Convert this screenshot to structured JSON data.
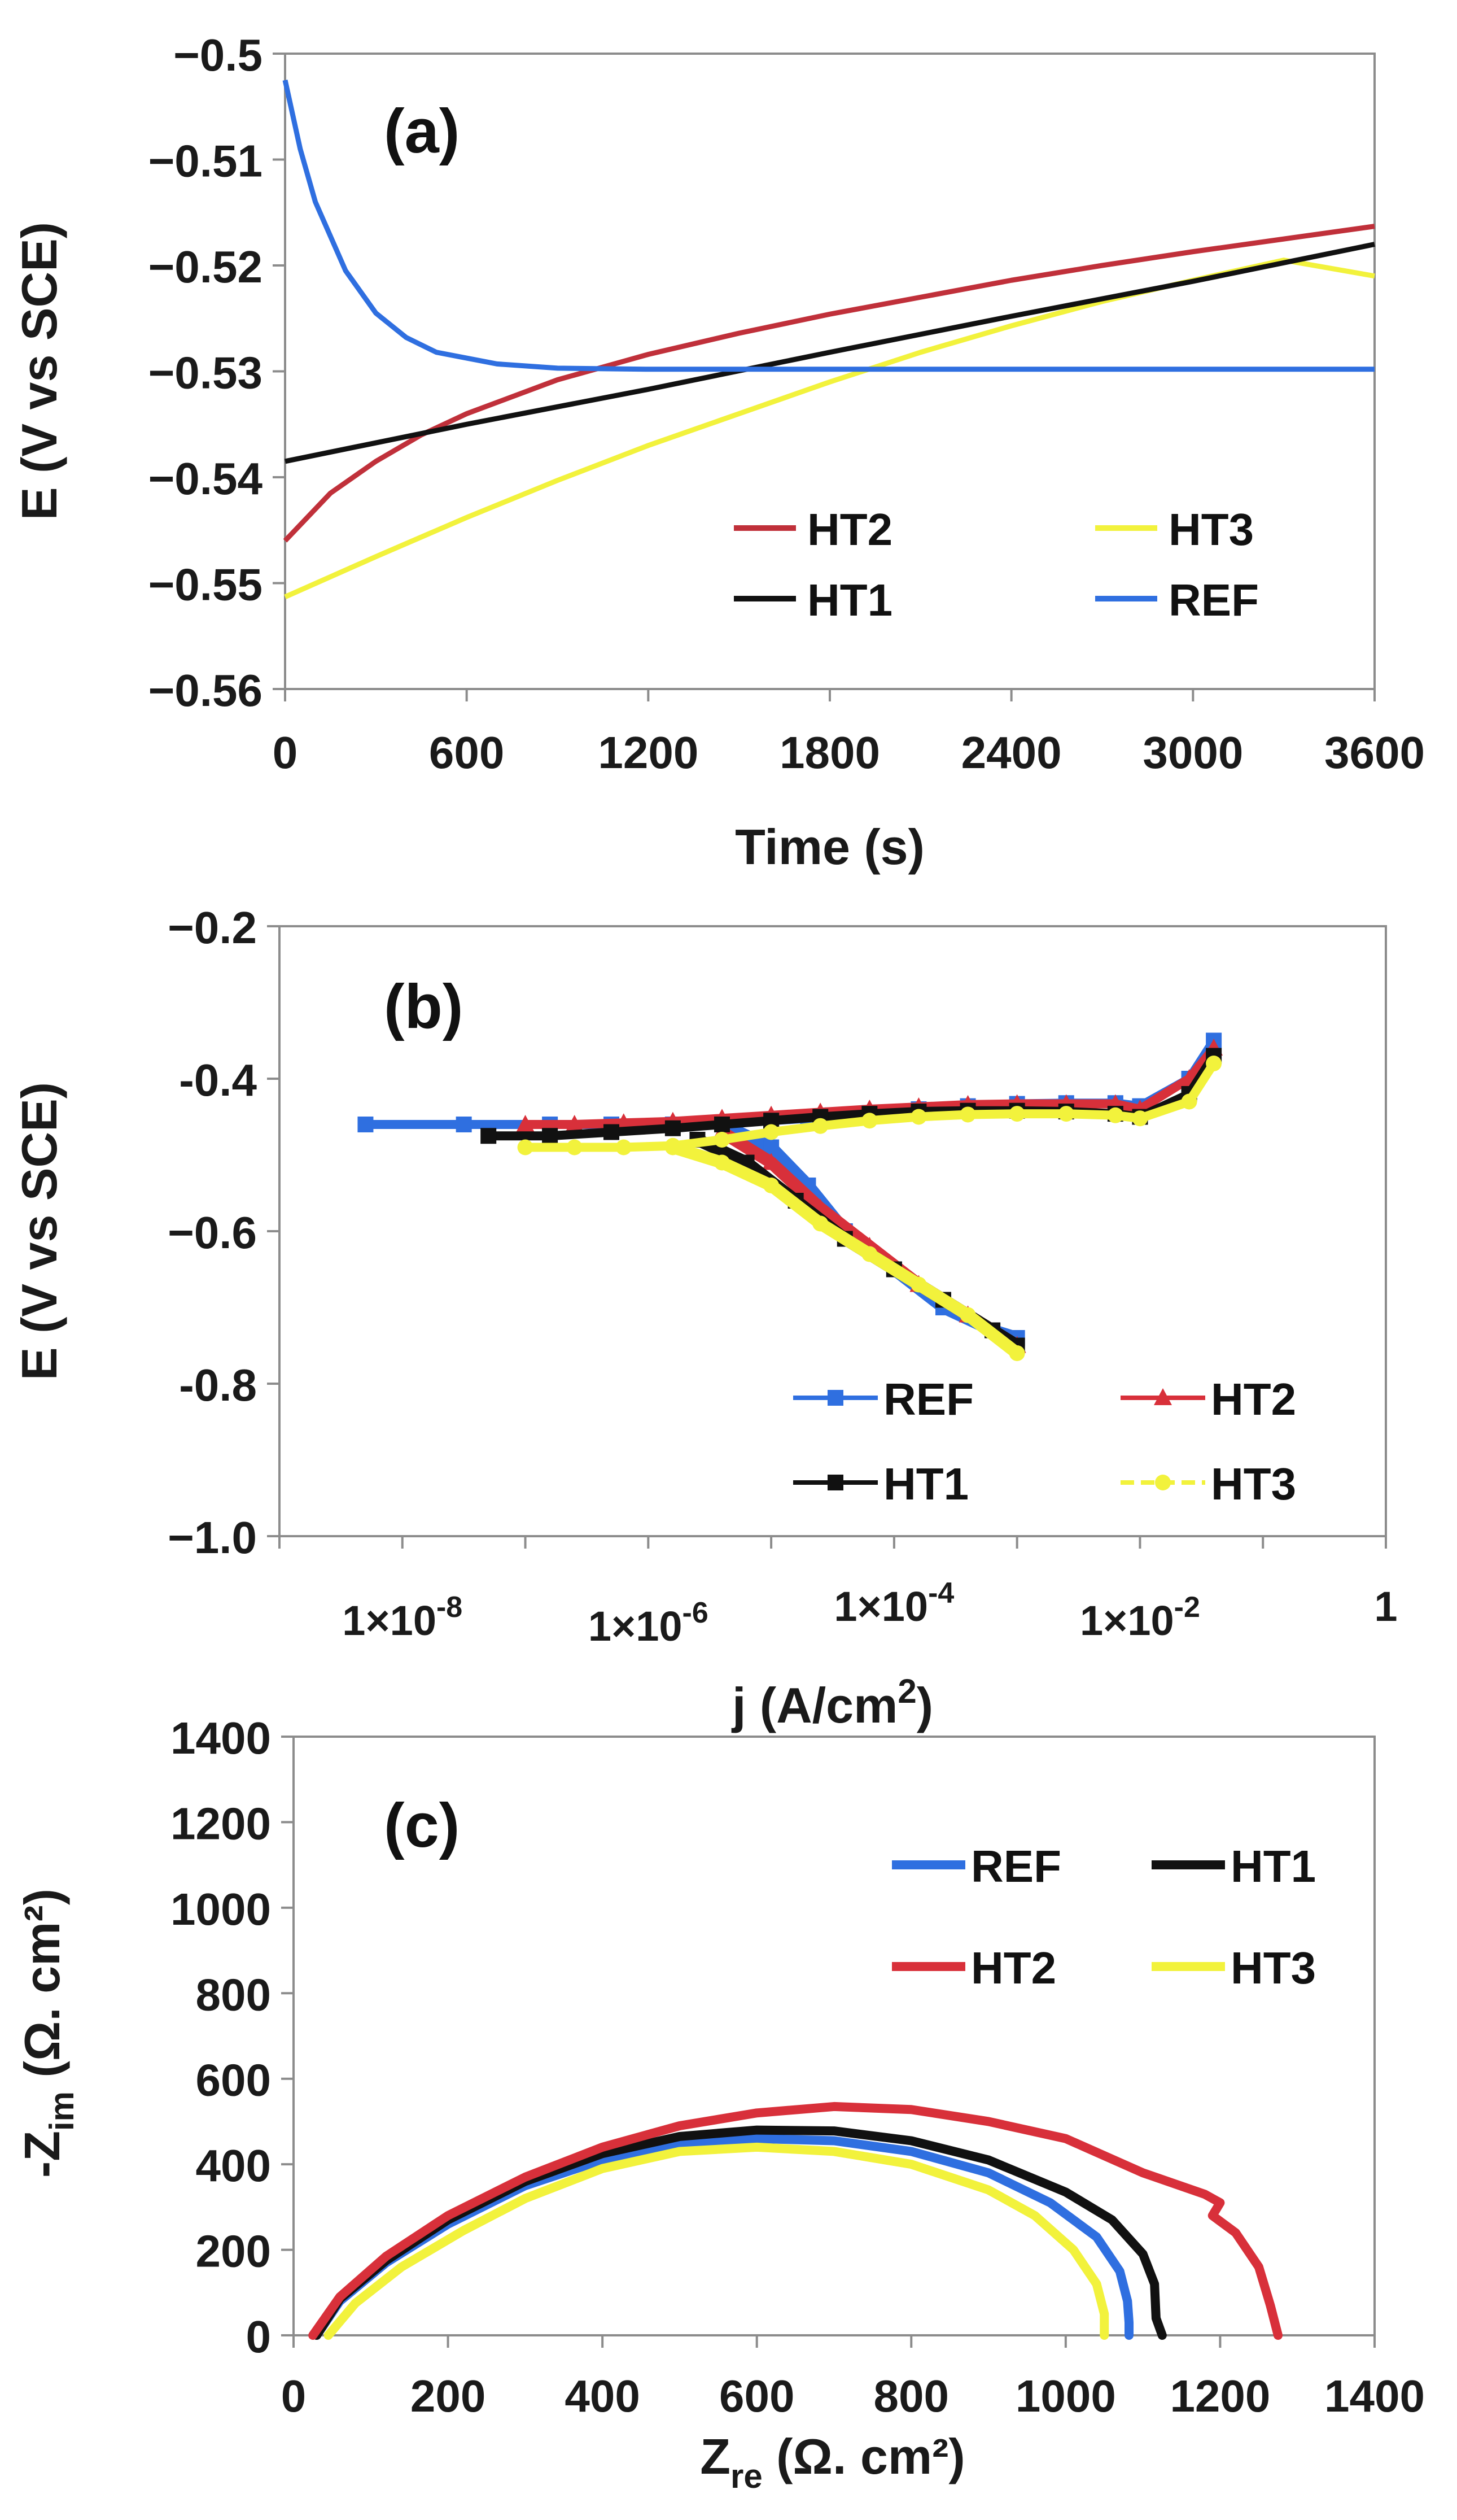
{
  "chart_data": [
    {
      "panel": "(a)",
      "type": "line",
      "title": "",
      "xlabel": "Time (s)",
      "ylabel": "E (V vs SCE)",
      "xlim": [
        0,
        3600
      ],
      "ylim": [
        -0.56,
        -0.5
      ],
      "x_tick_labels": [
        "0",
        "600",
        "1200",
        "1800",
        "2400",
        "3000",
        "3600"
      ],
      "y_tick_labels": [
        "−0.5",
        "−0.51",
        "−0.52",
        "−0.53",
        "−0.54",
        "−0.55",
        "−0.56"
      ],
      "legend_position": "bottom-right",
      "series": [
        {
          "name": "HT2",
          "color": "#c0303a",
          "x": [
            0,
            150,
            300,
            450,
            600,
            900,
            1200,
            1500,
            1800,
            2100,
            2400,
            2700,
            3000,
            3300,
            3600
          ],
          "y": [
            -0.546,
            -0.5415,
            -0.5385,
            -0.536,
            -0.534,
            -0.5308,
            -0.5284,
            -0.5264,
            -0.5246,
            -0.523,
            -0.5214,
            -0.52,
            -0.5187,
            -0.5175,
            -0.5163
          ]
        },
        {
          "name": "HT3",
          "color": "#f2f23c",
          "x": [
            0,
            300,
            600,
            900,
            1200,
            1500,
            1800,
            2100,
            2400,
            2700,
            3000,
            3300,
            3600
          ],
          "y": [
            -0.5513,
            -0.5475,
            -0.5438,
            -0.5403,
            -0.537,
            -0.534,
            -0.531,
            -0.5282,
            -0.5257,
            -0.5234,
            -0.5214,
            -0.5195,
            -0.521
          ]
        },
        {
          "name": "HT1",
          "color": "#111111",
          "x": [
            0,
            600,
            1200,
            1800,
            2400,
            3000,
            3600
          ],
          "y": [
            -0.5385,
            -0.535,
            -0.5317,
            -0.5282,
            -0.5248,
            -0.5215,
            -0.518
          ]
        },
        {
          "name": "REF",
          "color": "#2f6fe0",
          "x": [
            0,
            50,
            100,
            200,
            300,
            400,
            500,
            700,
            900,
            1200,
            1800,
            2400,
            3000,
            3600
          ],
          "y": [
            -0.5025,
            -0.509,
            -0.514,
            -0.5205,
            -0.5245,
            -0.5268,
            -0.5282,
            -0.5293,
            -0.5297,
            -0.5298,
            -0.5298,
            -0.5298,
            -0.5298,
            -0.5298
          ]
        }
      ]
    },
    {
      "panel": "(b)",
      "type": "line",
      "title": "",
      "xlabel": "j (A/cm²)",
      "ylabel": "E (V vs SCE)",
      "xscale": "log",
      "xlim_log10": [
        -9,
        0
      ],
      "ylim": [
        -1.0,
        -0.2
      ],
      "x_tick_values_log10": [
        -8,
        -6,
        -4,
        -2,
        0
      ],
      "x_tick_labels": [
        "1×10",
        "1×10",
        "1×10",
        "1×10",
        "1"
      ],
      "x_tick_exponents": [
        "-8",
        "-6",
        "-4",
        "-2",
        ""
      ],
      "y_tick_labels": [
        "−0.2",
        "-0.4",
        "−0.6",
        "-0.8",
        "−1.0"
      ],
      "legend_position": "bottom-right",
      "series": [
        {
          "name": "REF",
          "color": "#2f6fe0",
          "marker": "square",
          "log10_j": [
            -8.3,
            -7.5,
            -6.8,
            -6.3,
            -5.8,
            -5.4,
            -5.0,
            -4.7,
            -4.5,
            -4.2,
            -3.8,
            -3.4,
            -3.0,
            -2.6,
            -2.2,
            -2.0,
            -1.6,
            -1.4
          ],
          "E": [
            -0.46,
            -0.46,
            -0.46,
            -0.46,
            -0.46,
            -0.458,
            -0.455,
            -0.452,
            -0.448,
            -0.445,
            -0.44,
            -0.436,
            -0.433,
            -0.432,
            -0.432,
            -0.436,
            -0.4,
            -0.35
          ],
          "cathodic_log10_j": [
            -5.4,
            -5.0,
            -4.7,
            -4.4,
            -4.0,
            -3.6,
            -3.2,
            -3.0
          ],
          "cathodic_E": [
            -0.46,
            -0.49,
            -0.54,
            -0.6,
            -0.65,
            -0.7,
            -0.73,
            -0.74
          ]
        },
        {
          "name": "HT2",
          "color": "#d8303a",
          "marker": "triangle",
          "log10_j": [
            -7.0,
            -6.6,
            -6.2,
            -5.8,
            -5.4,
            -5.0,
            -4.6,
            -4.2,
            -3.8,
            -3.4,
            -3.0,
            -2.6,
            -2.2,
            -2.0,
            -1.6,
            -1.4
          ],
          "E": [
            -0.46,
            -0.46,
            -0.458,
            -0.456,
            -0.452,
            -0.448,
            -0.444,
            -0.44,
            -0.437,
            -0.434,
            -0.433,
            -0.433,
            -0.433,
            -0.44,
            -0.4,
            -0.36
          ],
          "cathodic_log10_j": [
            -5.4,
            -5.0,
            -4.6,
            -4.2,
            -3.8,
            -3.4,
            -3.0
          ],
          "cathodic_E": [
            -0.47,
            -0.51,
            -0.57,
            -0.62,
            -0.67,
            -0.71,
            -0.75
          ]
        },
        {
          "name": "HT1",
          "color": "#111111",
          "marker": "square",
          "log10_j": [
            -7.3,
            -6.8,
            -6.3,
            -5.8,
            -5.4,
            -5.0,
            -4.6,
            -4.2,
            -3.8,
            -3.4,
            -3.0,
            -2.6,
            -2.2,
            -2.0,
            -1.6,
            -1.4
          ],
          "E": [
            -0.475,
            -0.475,
            -0.47,
            -0.465,
            -0.46,
            -0.455,
            -0.45,
            -0.446,
            -0.443,
            -0.442,
            -0.442,
            -0.443,
            -0.446,
            -0.45,
            -0.42,
            -0.37
          ],
          "cathodic_log10_j": [
            -5.6,
            -5.2,
            -4.8,
            -4.4,
            -4.0,
            -3.6,
            -3.2,
            -3.0
          ],
          "cathodic_E": [
            -0.48,
            -0.51,
            -0.56,
            -0.61,
            -0.65,
            -0.69,
            -0.73,
            -0.75
          ]
        },
        {
          "name": "HT3",
          "color": "#f2f23c",
          "marker": "circle",
          "log10_j": [
            -7.0,
            -6.6,
            -6.2,
            -5.8,
            -5.4,
            -5.0,
            -4.6,
            -4.2,
            -3.8,
            -3.4,
            -3.0,
            -2.6,
            -2.2,
            -2.0,
            -1.6,
            -1.4
          ],
          "E": [
            -0.49,
            -0.49,
            -0.49,
            -0.488,
            -0.48,
            -0.47,
            -0.462,
            -0.455,
            -0.45,
            -0.447,
            -0.446,
            -0.446,
            -0.448,
            -0.452,
            -0.43,
            -0.38
          ],
          "cathodic_log10_j": [
            -5.8,
            -5.4,
            -5.0,
            -4.6,
            -4.2,
            -3.8,
            -3.4,
            -3.0
          ],
          "cathodic_E": [
            -0.49,
            -0.51,
            -0.54,
            -0.59,
            -0.63,
            -0.67,
            -0.71,
            -0.76
          ]
        }
      ]
    },
    {
      "panel": "(c)",
      "type": "line",
      "title": "",
      "xlabel": "Z",
      "xlabel_sub": "re",
      "xlabel_rest": " (Ω. cm²)",
      "ylabel": "-Z",
      "ylabel_sub": "im",
      "ylabel_rest": " (Ω. cm²)",
      "xlim": [
        0,
        1400
      ],
      "ylim": [
        0,
        1400
      ],
      "x_tick_labels": [
        "0",
        "200",
        "400",
        "600",
        "800",
        "1000",
        "1200",
        "1400"
      ],
      "y_tick_labels": [
        "0",
        "200",
        "400",
        "600",
        "800",
        "1000",
        "1200",
        "1400"
      ],
      "legend_position": "top-right",
      "series": [
        {
          "name": "REF",
          "color": "#2f6fe0",
          "x": [
            30,
            60,
            120,
            200,
            300,
            400,
            500,
            600,
            700,
            800,
            900,
            980,
            1040,
            1070,
            1080,
            1082,
            1082
          ],
          "y": [
            0,
            80,
            170,
            260,
            350,
            410,
            450,
            460,
            455,
            430,
            380,
            310,
            230,
            150,
            80,
            30,
            0
          ]
        },
        {
          "name": "HT1",
          "color": "#111111",
          "x": [
            30,
            60,
            120,
            200,
            300,
            400,
            500,
            600,
            700,
            800,
            900,
            1000,
            1060,
            1100,
            1115,
            1117,
            1125
          ],
          "y": [
            0,
            85,
            175,
            270,
            360,
            425,
            465,
            480,
            478,
            455,
            410,
            335,
            270,
            190,
            120,
            40,
            0
          ]
        },
        {
          "name": "HT2",
          "color": "#d8303a",
          "x": [
            25,
            60,
            120,
            200,
            300,
            400,
            500,
            600,
            700,
            800,
            900,
            1000,
            1100,
            1180,
            1200,
            1190,
            1220,
            1250,
            1265,
            1275
          ],
          "y": [
            0,
            90,
            185,
            280,
            370,
            440,
            490,
            520,
            535,
            528,
            500,
            460,
            380,
            330,
            310,
            280,
            240,
            160,
            70,
            0
          ]
        },
        {
          "name": "HT3",
          "color": "#f2f23c",
          "x": [
            45,
            80,
            140,
            220,
            300,
            400,
            500,
            600,
            700,
            800,
            900,
            960,
            1010,
            1040,
            1050,
            1050
          ],
          "y": [
            0,
            75,
            160,
            245,
            320,
            390,
            430,
            440,
            430,
            400,
            340,
            280,
            200,
            120,
            50,
            0
          ]
        }
      ]
    }
  ],
  "panel_labels": [
    "(a)",
    "(b)",
    "(c)"
  ]
}
